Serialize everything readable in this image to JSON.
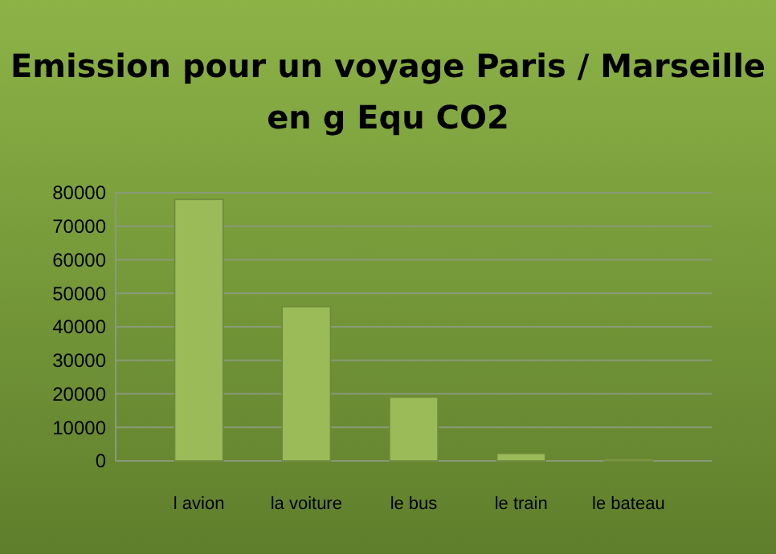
{
  "chart_data": {
    "type": "bar",
    "title": "Emission pour un voyage Paris / Marseille en g Equ CO2",
    "categories": [
      "l avion",
      "la voiture",
      "le bus",
      "le train",
      "le bateau"
    ],
    "values": [
      78000,
      46000,
      19000,
      2200,
      500
    ],
    "color": "#9bbb59",
    "ylim": [
      0,
      80000
    ],
    "yticks": [
      0,
      10000,
      20000,
      30000,
      40000,
      50000,
      60000,
      70000,
      80000
    ],
    "grid": "y"
  }
}
